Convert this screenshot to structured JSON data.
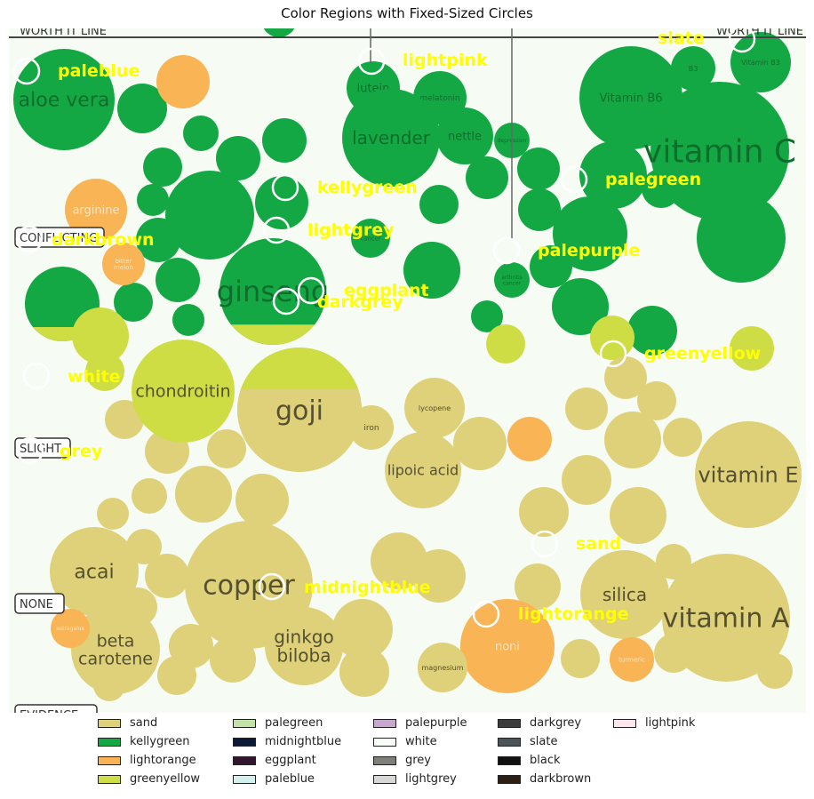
{
  "title": "Color Regions with Fixed-Sized Circles",
  "colors": {
    "sand": "#ded17a",
    "kellygreen": "#14a845",
    "lightorange": "#f8b455",
    "greenyellow": "#cfdd45",
    "palegreen": "#c1e3a8",
    "midnightblue": "#0b1a36",
    "eggplant": "#33162e",
    "paleblue": "#d2f0ee",
    "palepurple": "#c9a8cf",
    "white": "#f9fdf7",
    "grey": "#7e7e7a",
    "lightgrey": "#d8d8d6",
    "darkgrey": "#3c3c3c",
    "slate": "#4b5559",
    "black": "#111111",
    "darkbrown": "#2e1f14",
    "lightpink": "#fde7ec",
    "background": "#f6fcf3",
    "label_yellow": "#ffff00"
  },
  "axis_labels": {
    "worth_it_left": "WORTH IT LINE",
    "worth_it_right": "WORTH IT LINE",
    "conflicting": "CONFLICTING",
    "slight": "SLIGHT",
    "none": "NONE",
    "evidence": "EVIDENCE"
  },
  "bubbles": [
    {
      "text": "aloe vera",
      "color": "kellygreen"
    },
    {
      "text": "lutein",
      "color": "kellygreen"
    },
    {
      "text": "melatonin",
      "color": "kellygreen"
    },
    {
      "text": "lavender",
      "color": "kellygreen"
    },
    {
      "text": "nettle",
      "color": "kellygreen"
    },
    {
      "text": "depression",
      "color": "kellygreen"
    },
    {
      "text": "Vitamin B6",
      "color": "kellygreen"
    },
    {
      "text": "B3",
      "color": "kellygreen"
    },
    {
      "text": "Vitamin B3",
      "color": "kellygreen"
    },
    {
      "text": "vitamin C",
      "color": "kellygreen"
    },
    {
      "text": "arginine",
      "color": "lightorange"
    },
    {
      "text": "cancer",
      "color": "kellygreen"
    },
    {
      "text": "bitter melon",
      "color": "lightorange"
    },
    {
      "text": "arthritis cancer",
      "color": "kellygreen"
    },
    {
      "text": "ginseng",
      "color": "kellygreen"
    },
    {
      "text": "chondroitin",
      "color": "greenyellow"
    },
    {
      "text": "goji",
      "color": "sand"
    },
    {
      "text": "lycopene",
      "color": "sand"
    },
    {
      "text": "iron",
      "color": "sand"
    },
    {
      "text": "lipoic acid",
      "color": "sand"
    },
    {
      "text": "vitamin E",
      "color": "sand"
    },
    {
      "text": "acai",
      "color": "sand"
    },
    {
      "text": "copper",
      "color": "sand"
    },
    {
      "text": "silica",
      "color": "sand"
    },
    {
      "text": "vitamin A",
      "color": "sand"
    },
    {
      "text": "beta carotene",
      "color": "sand"
    },
    {
      "text": "ginkgo biloba",
      "color": "sand"
    },
    {
      "text": "noni",
      "color": "lightorange"
    },
    {
      "text": "magnesium",
      "color": "sand"
    },
    {
      "text": "turmeric",
      "color": "lightorange"
    },
    {
      "text": "astragalus",
      "color": "lightorange"
    }
  ],
  "markers": [
    {
      "label": "paleblue"
    },
    {
      "label": "lightpink"
    },
    {
      "label": "slate"
    },
    {
      "label": "kellygreen"
    },
    {
      "label": "palegreen"
    },
    {
      "label": "lightgrey"
    },
    {
      "label": "darkbrown"
    },
    {
      "label": "palepurple"
    },
    {
      "label": "eggplant"
    },
    {
      "label": "darkgrey"
    },
    {
      "label": "greenyellow"
    },
    {
      "label": "white"
    },
    {
      "label": "grey"
    },
    {
      "label": "sand"
    },
    {
      "label": "midnightblue"
    },
    {
      "label": "lightorange"
    }
  ],
  "legend": [
    {
      "label": "sand",
      "color": "sand"
    },
    {
      "label": "kellygreen",
      "color": "kellygreen"
    },
    {
      "label": "lightorange",
      "color": "lightorange"
    },
    {
      "label": "greenyellow",
      "color": "greenyellow"
    },
    {
      "label": "palegreen",
      "color": "palegreen"
    },
    {
      "label": "midnightblue",
      "color": "midnightblue"
    },
    {
      "label": "eggplant",
      "color": "eggplant"
    },
    {
      "label": "paleblue",
      "color": "paleblue"
    },
    {
      "label": "palepurple",
      "color": "palepurple"
    },
    {
      "label": "white",
      "color": "white"
    },
    {
      "label": "grey",
      "color": "grey"
    },
    {
      "label": "lightgrey",
      "color": "lightgrey"
    },
    {
      "label": "darkgrey",
      "color": "darkgrey"
    },
    {
      "label": "slate",
      "color": "slate"
    },
    {
      "label": "black",
      "color": "black"
    },
    {
      "label": "darkbrown",
      "color": "darkbrown"
    },
    {
      "label": "lightpink",
      "color": "lightpink"
    }
  ]
}
